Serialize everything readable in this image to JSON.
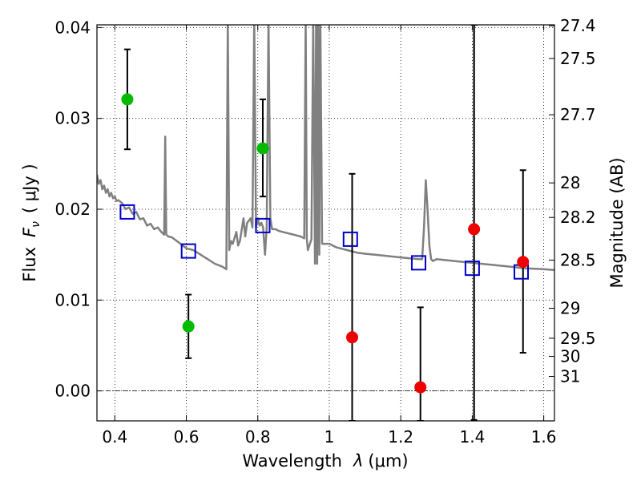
{
  "chart_data": {
    "type": "scatter",
    "xlabel": "Wavelength",
    "xlabel_symbol": "λ",
    "xlabel_unit": "(μm)",
    "ylabel": "Flux",
    "ylabel_symbol": "F",
    "ylabel_subscript": "ν",
    "ylabel_unit": "( μJy )",
    "y2label": "Magnitude (AB)",
    "xlim": [
      0.35,
      1.63
    ],
    "ylim": [
      -0.0033,
      0.0403
    ],
    "grid": true,
    "zero_line": true,
    "x_ticks": [
      {
        "value": 0.4,
        "label": "0.4"
      },
      {
        "value": 0.6,
        "label": "0.6"
      },
      {
        "value": 0.8,
        "label": "0.8"
      },
      {
        "value": 1.0,
        "label": "1"
      },
      {
        "value": 1.2,
        "label": "1.2"
      },
      {
        "value": 1.4,
        "label": "1.4"
      },
      {
        "value": 1.6,
        "label": "1.6"
      }
    ],
    "y_ticks": [
      {
        "value": 0.0,
        "label": "0.00"
      },
      {
        "value": 0.01,
        "label": "0.01"
      },
      {
        "value": 0.02,
        "label": "0.02"
      },
      {
        "value": 0.03,
        "label": "0.03"
      },
      {
        "value": 0.04,
        "label": "0.04"
      }
    ],
    "y2_ticks": [
      {
        "flux": 0.0402,
        "label": "27.4"
      },
      {
        "flux": 0.0366,
        "label": "27.5"
      },
      {
        "flux": 0.0304,
        "label": "27.7"
      },
      {
        "flux": 0.0229,
        "label": "28"
      },
      {
        "flux": 0.0191,
        "label": "28.2"
      },
      {
        "flux": 0.0144,
        "label": "28.5"
      },
      {
        "flux": 0.0091,
        "label": "29"
      },
      {
        "flux": 0.0058,
        "label": "29.5"
      },
      {
        "flux": 0.0038,
        "label": "30"
      },
      {
        "flux": 0.0016,
        "label": "31"
      }
    ],
    "vertical_lines": [
      {
        "x": 1.405,
        "color": "#000000"
      }
    ],
    "model_spectrum": {
      "color": "#808080",
      "x": [
        0.35,
        0.355,
        0.36,
        0.365,
        0.37,
        0.375,
        0.38,
        0.385,
        0.39,
        0.395,
        0.4,
        0.405,
        0.41,
        0.42,
        0.43,
        0.44,
        0.45,
        0.46,
        0.47,
        0.48,
        0.49,
        0.5,
        0.51,
        0.52,
        0.53,
        0.538,
        0.541,
        0.544,
        0.55,
        0.56,
        0.58,
        0.6,
        0.62,
        0.64,
        0.66,
        0.68,
        0.7,
        0.712,
        0.716,
        0.72,
        0.725,
        0.73,
        0.74,
        0.745,
        0.75,
        0.76,
        0.765,
        0.77,
        0.78,
        0.785,
        0.79,
        0.795,
        0.8,
        0.805,
        0.81,
        0.815,
        0.82,
        0.825,
        0.83,
        0.835,
        0.84,
        0.85,
        0.86,
        0.88,
        0.9,
        0.92,
        0.93,
        0.934,
        0.937,
        0.94,
        0.95,
        0.955,
        0.96,
        0.963,
        0.966,
        0.969,
        0.972,
        0.975,
        0.98,
        1.0,
        1.02,
        1.05,
        1.08,
        1.1,
        1.15,
        1.2,
        1.25,
        1.26,
        1.265,
        1.27,
        1.275,
        1.28,
        1.285,
        1.29,
        1.3,
        1.35,
        1.4,
        1.45,
        1.5,
        1.55,
        1.6,
        1.63
      ],
      "y": [
        0.0238,
        0.0228,
        0.0232,
        0.0222,
        0.0226,
        0.0218,
        0.0222,
        0.0214,
        0.0218,
        0.0212,
        0.0214,
        0.0209,
        0.021,
        0.0207,
        0.02,
        0.0202,
        0.0195,
        0.0197,
        0.0189,
        0.019,
        0.0182,
        0.0184,
        0.0178,
        0.018,
        0.0175,
        0.0172,
        0.028,
        0.0172,
        0.017,
        0.0169,
        0.0163,
        0.0157,
        0.0155,
        0.015,
        0.0145,
        0.014,
        0.0137,
        0.0134,
        0.041,
        0.0155,
        0.0165,
        0.0162,
        0.0175,
        0.016,
        0.0165,
        0.019,
        0.017,
        0.0185,
        0.019,
        0.018,
        0.041,
        0.018,
        0.019,
        0.0182,
        0.0185,
        0.018,
        0.015,
        0.018,
        0.041,
        0.019,
        0.0178,
        0.0178,
        0.0176,
        0.0174,
        0.0172,
        0.017,
        0.0168,
        0.041,
        0.0168,
        0.0155,
        0.0167,
        0.041,
        0.014,
        0.041,
        0.014,
        0.041,
        0.015,
        0.041,
        0.0162,
        0.0162,
        0.0158,
        0.0155,
        0.0152,
        0.0151,
        0.0149,
        0.0147,
        0.0145,
        0.0145,
        0.018,
        0.0232,
        0.02,
        0.016,
        0.0145,
        0.0143,
        0.0145,
        0.0143,
        0.0141,
        0.0139,
        0.0137,
        0.0135,
        0.0134,
        0.0133
      ]
    },
    "model_photometry": {
      "color": "#0000cc",
      "marker": "open-square",
      "points": [
        {
          "x": 0.435,
          "y": 0.0197
        },
        {
          "x": 0.606,
          "y": 0.0154
        },
        {
          "x": 0.814,
          "y": 0.0182
        },
        {
          "x": 1.059,
          "y": 0.0167
        },
        {
          "x": 1.25,
          "y": 0.0141
        },
        {
          "x": 1.4,
          "y": 0.0135
        },
        {
          "x": 1.537,
          "y": 0.0131
        }
      ]
    },
    "detections": {
      "color": "#00bb00",
      "marker": "filled-circle",
      "points": [
        {
          "x": 0.435,
          "y": 0.0321,
          "yerr_low": 0.0055,
          "yerr_high": 0.0055
        },
        {
          "x": 0.606,
          "y": 0.0071,
          "yerr_low": 0.0035,
          "yerr_high": 0.0035
        },
        {
          "x": 0.814,
          "y": 0.0267,
          "yerr_low": 0.0053,
          "yerr_high": 0.0054
        }
      ]
    },
    "non_detections": {
      "color": "#ee0000",
      "marker": "filled-circle",
      "points": [
        {
          "x": 1.064,
          "y": 0.0059,
          "yerr_low": 0.0092,
          "yerr_high": 0.018
        },
        {
          "x": 1.255,
          "y": 0.0004,
          "yerr_low": 0.0037,
          "yerr_high": 0.0088
        },
        {
          "x": 1.405,
          "y": 0.0178,
          "yerr_low": 0.021,
          "yerr_high": 0.0225
        },
        {
          "x": 1.542,
          "y": 0.0142,
          "yerr_low": 0.01,
          "yerr_high": 0.0101
        }
      ]
    }
  }
}
